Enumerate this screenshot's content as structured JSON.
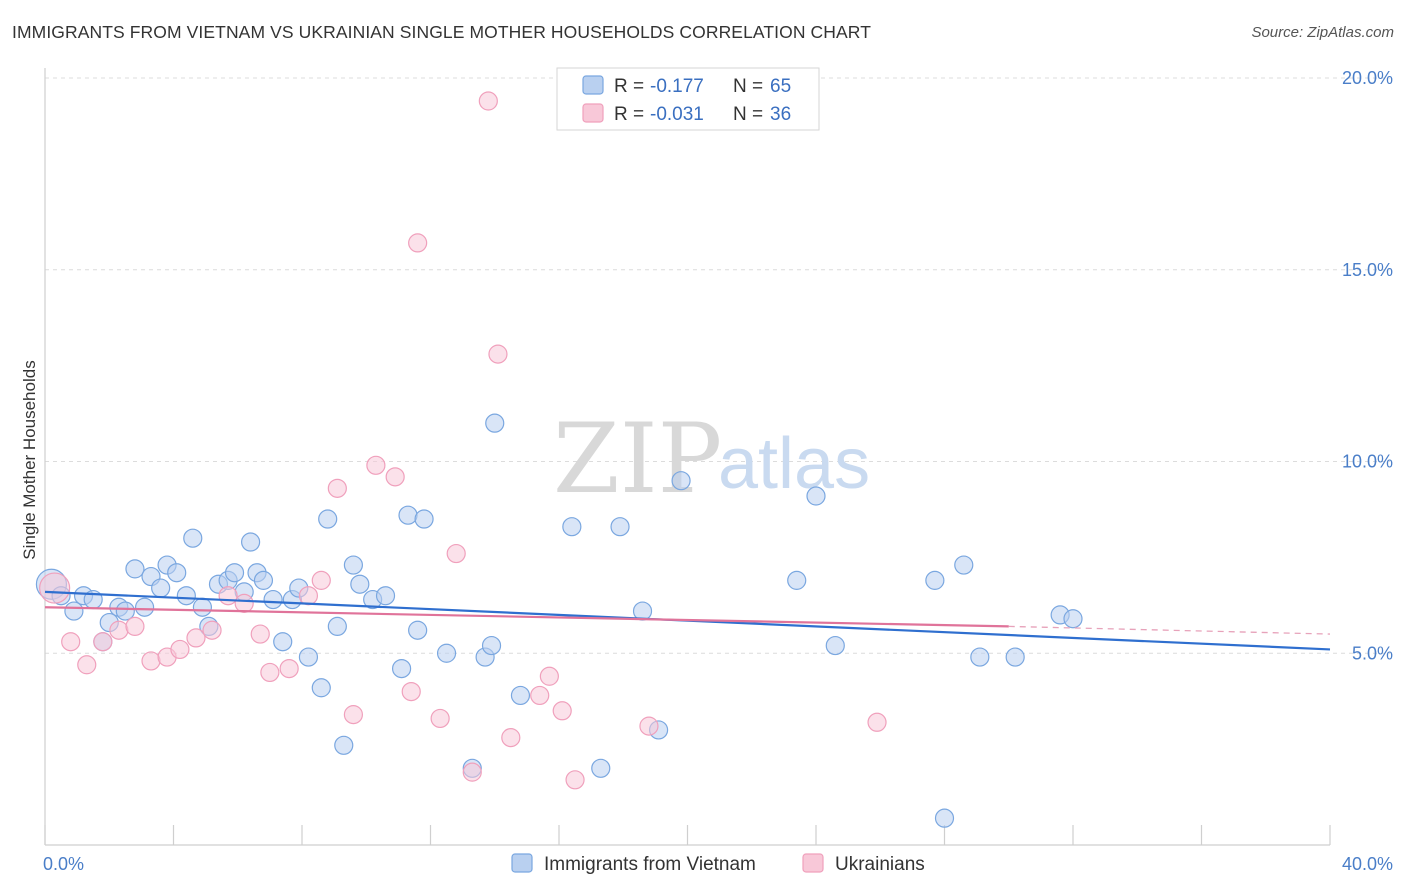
{
  "header": {
    "title": "IMMIGRANTS FROM VIETNAM VS UKRAINIAN SINGLE MOTHER HOUSEHOLDS CORRELATION CHART",
    "source": "Source: ZipAtlas.com"
  },
  "watermark": {
    "part1": "ZIP",
    "part2": "atlas"
  },
  "legend": {
    "r_label": "R =",
    "n_label": "N =",
    "entries": [
      {
        "r": "-0.177",
        "n": "65"
      },
      {
        "r": "-0.031",
        "n": "36"
      }
    ]
  },
  "chart_data": {
    "type": "scatter",
    "title": "IMMIGRANTS FROM VIETNAM VS UKRAINIAN SINGLE MOTHER HOUSEHOLDS CORRELATION CHART",
    "xlabel": "",
    "ylabel": "Single Mother Households",
    "xlim": [
      0,
      40
    ],
    "ylim": [
      0,
      20
    ],
    "x_tick_labels": [
      "0.0%",
      "40.0%"
    ],
    "y_ticks": [
      {
        "value": 5,
        "label": "5.0%"
      },
      {
        "value": 10,
        "label": "10.0%"
      },
      {
        "value": 15,
        "label": "15.0%"
      },
      {
        "value": 20,
        "label": "20.0%"
      }
    ],
    "grid": true,
    "legend_position": "top-center",
    "series": [
      {
        "name": "Immigrants from Vietnam",
        "color": "#7aa7e0",
        "fill": "#b9d0f0",
        "r": -0.177,
        "n": 65,
        "trend": {
          "x": [
            0,
            40
          ],
          "y": [
            6.6,
            5.1
          ]
        },
        "points": [
          [
            0.2,
            6.8
          ],
          [
            0.5,
            6.5
          ],
          [
            0.9,
            6.1
          ],
          [
            1.2,
            6.5
          ],
          [
            1.5,
            6.4
          ],
          [
            1.8,
            5.3
          ],
          [
            2.0,
            5.8
          ],
          [
            2.3,
            6.2
          ],
          [
            2.5,
            6.1
          ],
          [
            2.8,
            7.2
          ],
          [
            3.1,
            6.2
          ],
          [
            3.3,
            7.0
          ],
          [
            3.6,
            6.7
          ],
          [
            3.8,
            7.3
          ],
          [
            4.1,
            7.1
          ],
          [
            4.4,
            6.5
          ],
          [
            4.6,
            8.0
          ],
          [
            4.9,
            6.2
          ],
          [
            5.1,
            5.7
          ],
          [
            5.4,
            6.8
          ],
          [
            5.7,
            6.9
          ],
          [
            5.9,
            7.1
          ],
          [
            6.2,
            6.6
          ],
          [
            6.4,
            7.9
          ],
          [
            6.6,
            7.1
          ],
          [
            6.8,
            6.9
          ],
          [
            7.1,
            6.4
          ],
          [
            7.4,
            5.3
          ],
          [
            7.7,
            6.4
          ],
          [
            7.9,
            6.7
          ],
          [
            8.2,
            4.9
          ],
          [
            8.6,
            4.1
          ],
          [
            8.8,
            8.5
          ],
          [
            9.1,
            5.7
          ],
          [
            9.3,
            2.6
          ],
          [
            9.6,
            7.3
          ],
          [
            9.8,
            6.8
          ],
          [
            10.2,
            6.4
          ],
          [
            10.6,
            6.5
          ],
          [
            11.1,
            4.6
          ],
          [
            11.3,
            8.6
          ],
          [
            11.6,
            5.6
          ],
          [
            11.8,
            8.5
          ],
          [
            12.5,
            5.0
          ],
          [
            13.3,
            2.0
          ],
          [
            13.7,
            4.9
          ],
          [
            13.9,
            5.2
          ],
          [
            14.0,
            11.0
          ],
          [
            14.8,
            3.9
          ],
          [
            16.4,
            8.3
          ],
          [
            17.3,
            2.0
          ],
          [
            17.9,
            8.3
          ],
          [
            18.6,
            6.1
          ],
          [
            19.1,
            3.0
          ],
          [
            19.8,
            9.5
          ],
          [
            23.4,
            6.9
          ],
          [
            24.0,
            9.1
          ],
          [
            24.6,
            5.2
          ],
          [
            27.7,
            6.9
          ],
          [
            28.0,
            0.7
          ],
          [
            28.6,
            7.3
          ],
          [
            29.1,
            4.9
          ],
          [
            30.2,
            4.9
          ],
          [
            31.6,
            6.0
          ],
          [
            32.0,
            5.9
          ]
        ]
      },
      {
        "name": "Ukrainians",
        "color": "#f0a0bc",
        "fill": "#f8c8d8",
        "r": -0.031,
        "n": 36,
        "trend": {
          "x": [
            0,
            30.0
          ],
          "y": [
            6.2,
            5.7
          ]
        },
        "trend_dashed": {
          "x": [
            30.0,
            40
          ],
          "y": [
            5.7,
            5.5
          ]
        },
        "points": [
          [
            0.3,
            6.7
          ],
          [
            0.8,
            5.3
          ],
          [
            1.3,
            4.7
          ],
          [
            1.8,
            5.3
          ],
          [
            2.3,
            5.6
          ],
          [
            2.8,
            5.7
          ],
          [
            3.3,
            4.8
          ],
          [
            3.8,
            4.9
          ],
          [
            4.2,
            5.1
          ],
          [
            4.7,
            5.4
          ],
          [
            5.2,
            5.6
          ],
          [
            5.7,
            6.5
          ],
          [
            6.2,
            6.3
          ],
          [
            6.7,
            5.5
          ],
          [
            7.0,
            4.5
          ],
          [
            7.6,
            4.6
          ],
          [
            8.2,
            6.5
          ],
          [
            8.6,
            6.9
          ],
          [
            9.1,
            9.3
          ],
          [
            9.6,
            3.4
          ],
          [
            10.3,
            9.9
          ],
          [
            10.9,
            9.6
          ],
          [
            11.4,
            4.0
          ],
          [
            11.6,
            15.7
          ],
          [
            12.3,
            3.3
          ],
          [
            12.8,
            7.6
          ],
          [
            13.3,
            1.9
          ],
          [
            13.8,
            19.4
          ],
          [
            14.1,
            12.8
          ],
          [
            14.5,
            2.8
          ],
          [
            15.4,
            3.9
          ],
          [
            15.7,
            4.4
          ],
          [
            16.1,
            3.5
          ],
          [
            16.5,
            1.7
          ],
          [
            18.8,
            3.1
          ],
          [
            25.9,
            3.2
          ]
        ]
      }
    ]
  },
  "bottom_legend": {
    "items": [
      {
        "label": "Immigrants from Vietnam"
      },
      {
        "label": "Ukrainians"
      }
    ]
  }
}
